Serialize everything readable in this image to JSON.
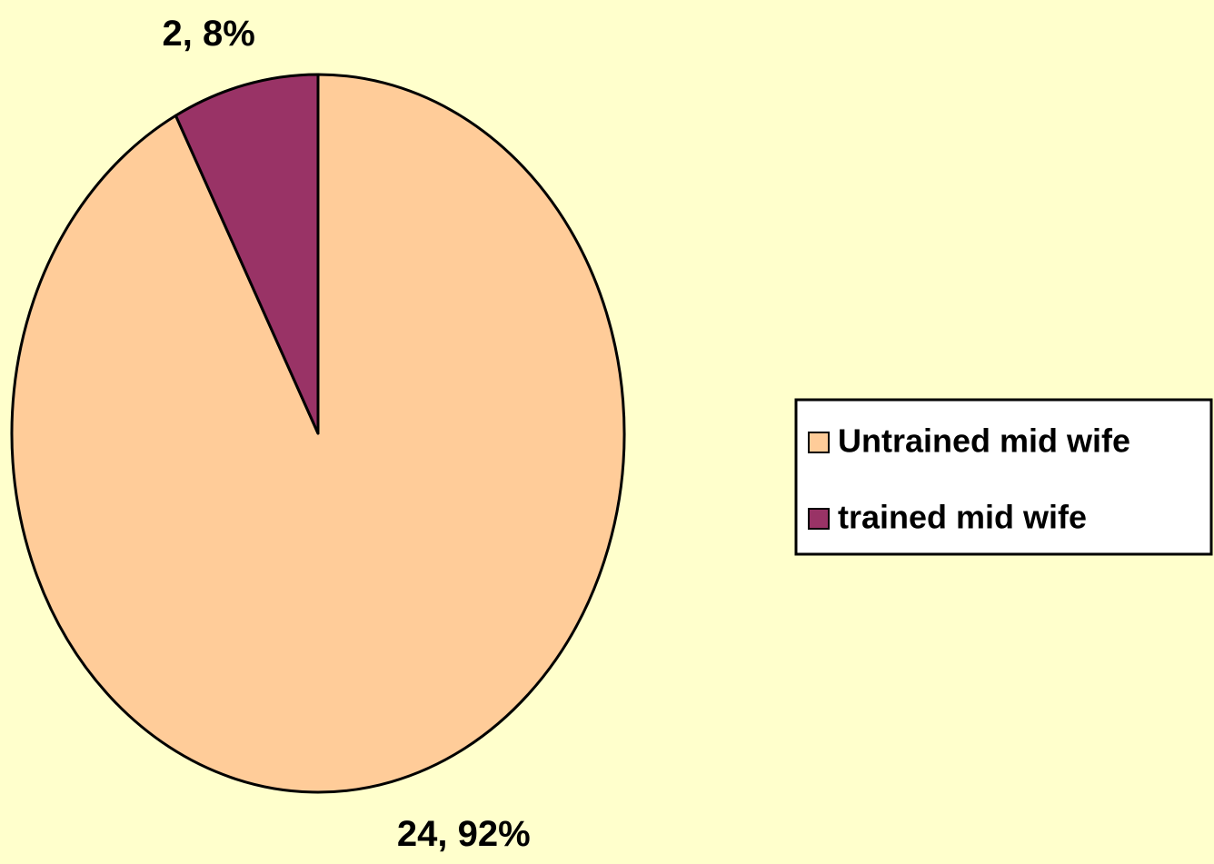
{
  "chart_data": {
    "type": "pie",
    "categories": [
      "Untrained mid wife",
      "trained mid wife"
    ],
    "values": [
      24,
      2
    ],
    "value_labels": [
      "24, 92%",
      "2, 8%"
    ],
    "colors": [
      "#ffcc99",
      "#993366"
    ],
    "legend": "right"
  }
}
